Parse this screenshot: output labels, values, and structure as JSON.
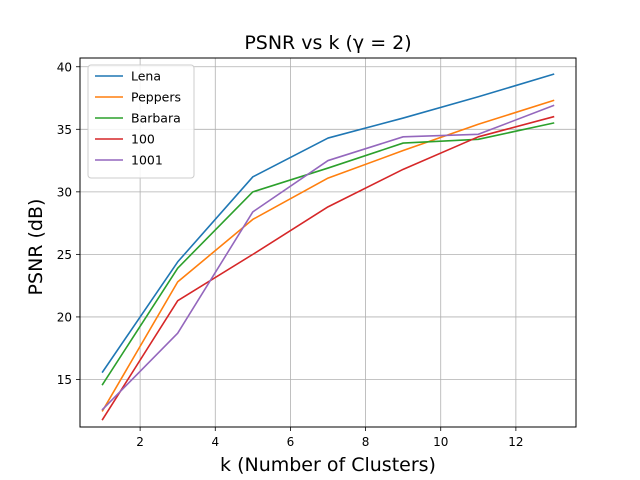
{
  "chart_data": {
    "type": "line",
    "title": "PSNR vs k (γ = 2)",
    "xlabel": "k (Number of Clusters)",
    "ylabel": "PSNR (dB)",
    "xlim": [
      0.4,
      13.6
    ],
    "ylim": [
      11.2,
      40.7
    ],
    "xticks": [
      2,
      4,
      6,
      8,
      10,
      12
    ],
    "yticks": [
      15,
      20,
      25,
      30,
      35,
      40
    ],
    "grid": true,
    "legend_position": "upper-left",
    "x": [
      1,
      3,
      5,
      7,
      9,
      11,
      13
    ],
    "series": [
      {
        "name": "Lena",
        "color": "#1f77b4",
        "values": [
          15.6,
          24.4,
          31.2,
          34.3,
          35.9,
          37.6,
          39.4
        ]
      },
      {
        "name": "Peppers",
        "color": "#ff7f0e",
        "values": [
          12.5,
          22.8,
          27.8,
          31.1,
          33.3,
          35.4,
          37.3
        ]
      },
      {
        "name": "Barbara",
        "color": "#2ca02c",
        "values": [
          14.6,
          23.9,
          30.0,
          31.9,
          33.9,
          34.2,
          35.5
        ]
      },
      {
        "name": "100",
        "color": "#d62728",
        "values": [
          11.8,
          21.3,
          25.0,
          28.8,
          31.8,
          34.4,
          36.0
        ]
      },
      {
        "name": "1001",
        "color": "#9467bd",
        "values": [
          12.6,
          18.7,
          28.4,
          32.5,
          34.4,
          34.6,
          36.9
        ]
      }
    ]
  }
}
